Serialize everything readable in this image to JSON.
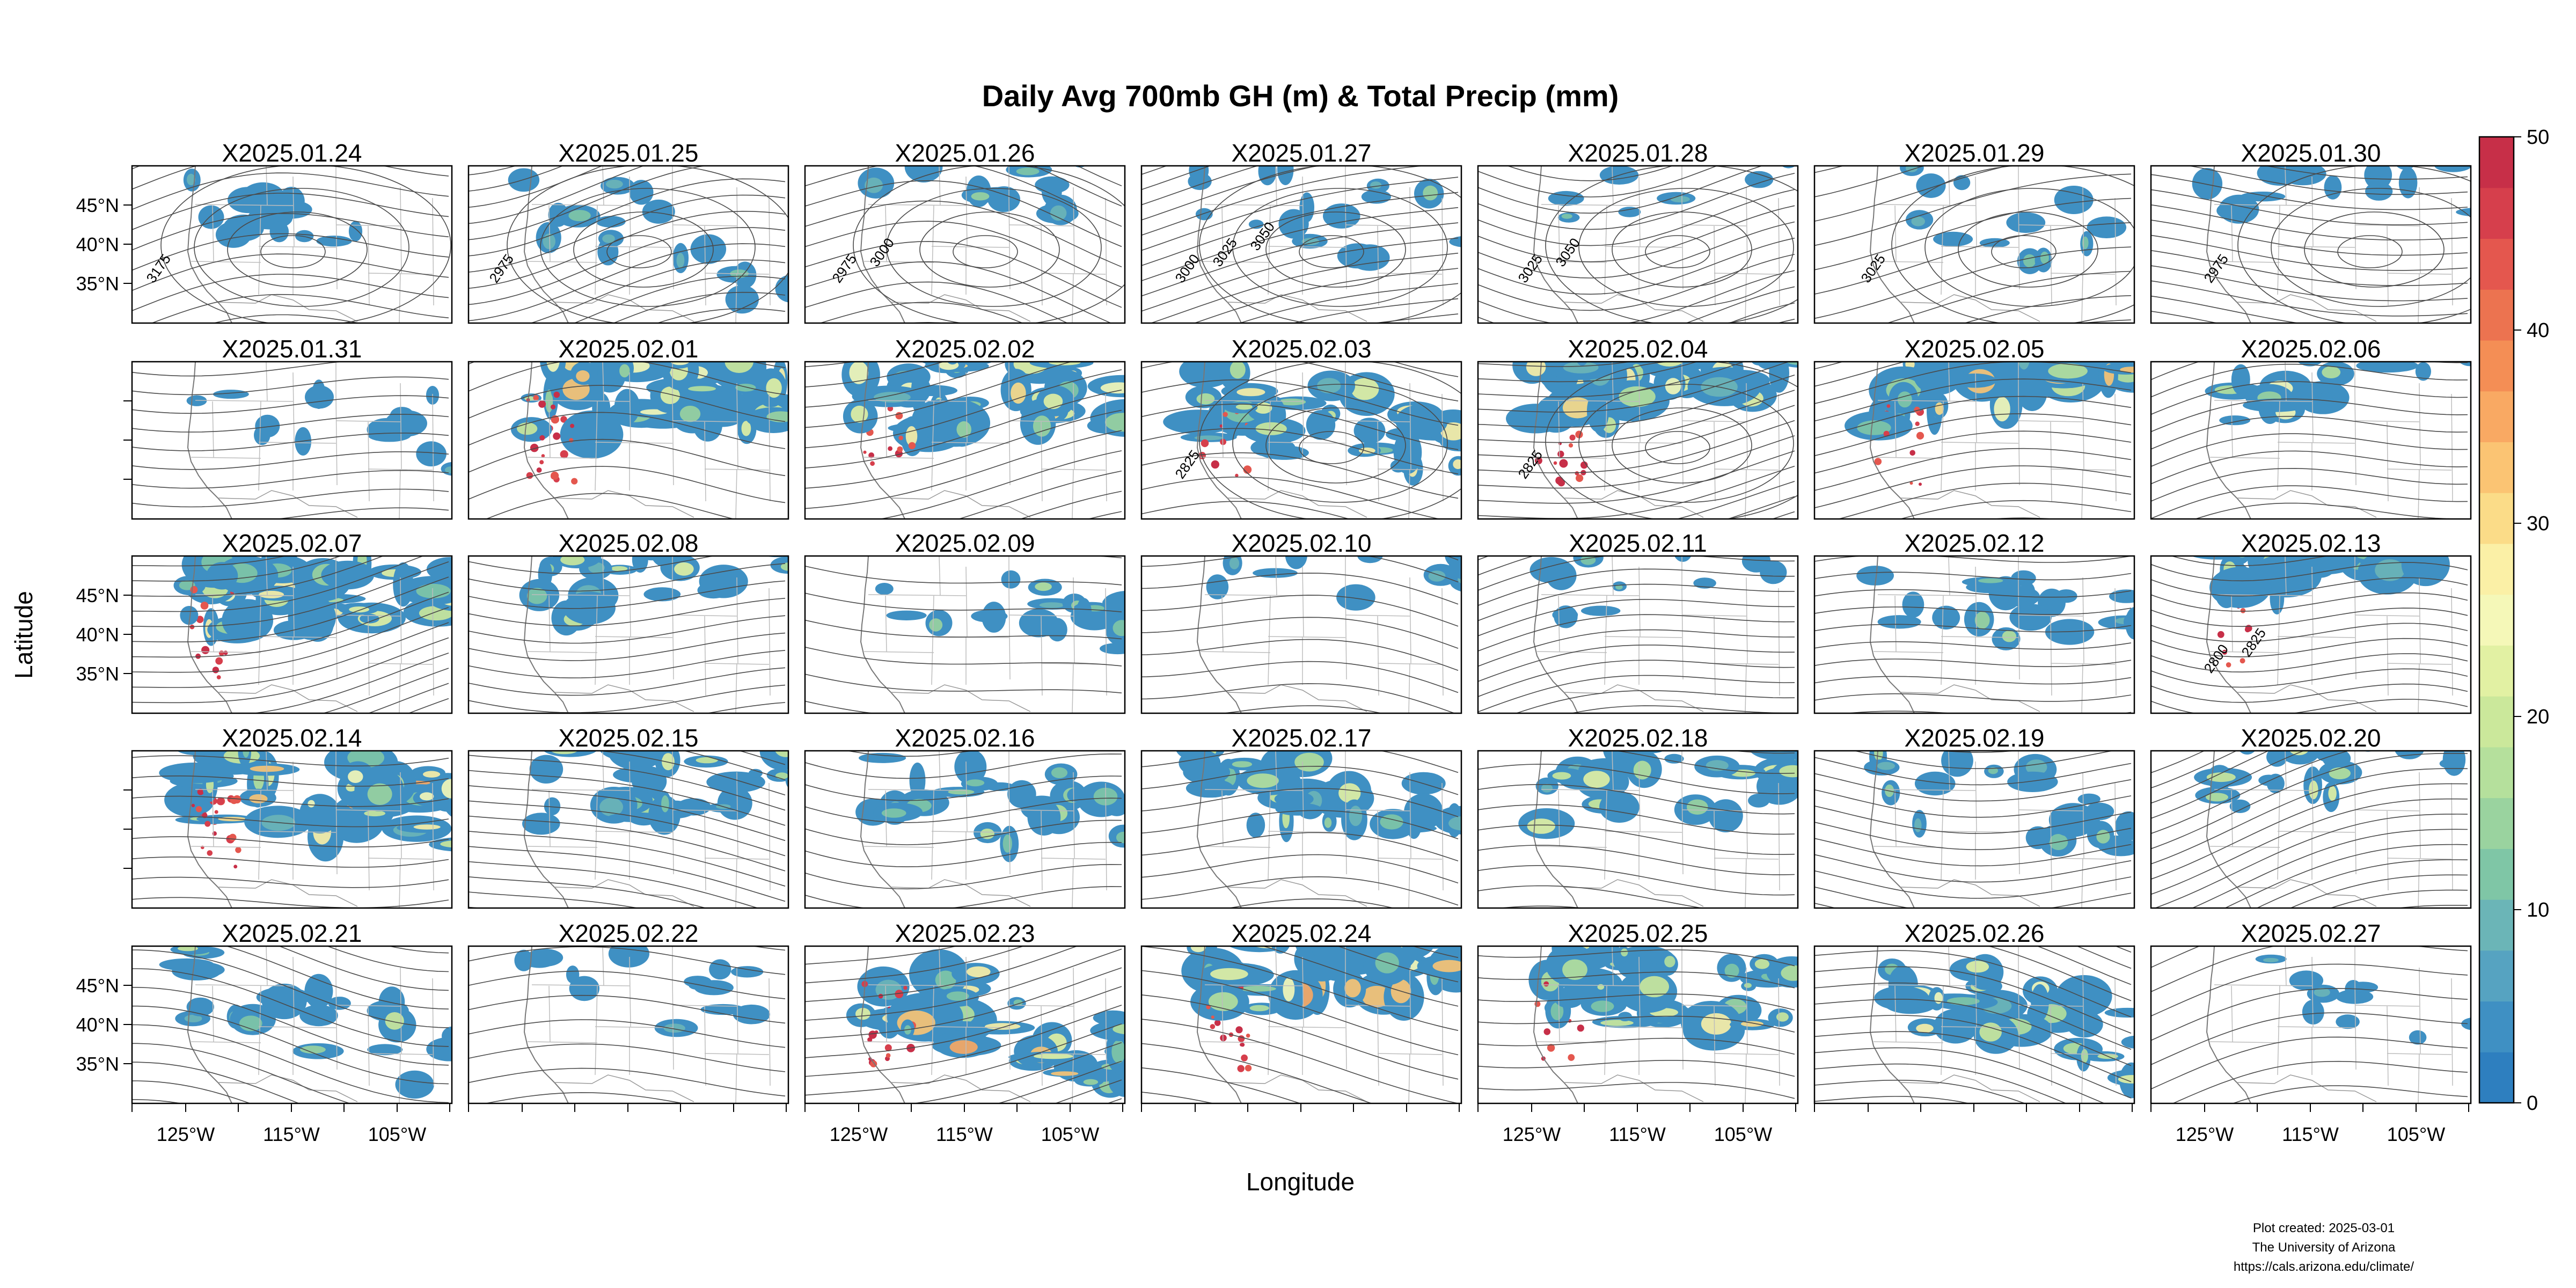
{
  "chart_data": {
    "type": "heatmap",
    "title": "Daily Avg 700mb GH (m) & Total Precip (mm)",
    "xlabel": "Longitude",
    "ylabel": "Latitude",
    "colorbar": {
      "min": 0,
      "max": 50,
      "ticks": [
        "0",
        "10",
        "20",
        "30",
        "40",
        "50"
      ],
      "colors": [
        "#2e7fbf",
        "#3f90c3",
        "#56a3c1",
        "#6bb5b7",
        "#7fc6a6",
        "#9ad39f",
        "#b5e09c",
        "#cbe89b",
        "#e2f1a3",
        "#f5f8b8",
        "#fbf0a6",
        "#fbdc88",
        "#fbc473",
        "#f9a963",
        "#f48e55",
        "#ec7350",
        "#e4574e",
        "#d63f4c",
        "#c72f48"
      ]
    },
    "lon_ticks": [
      "125°W",
      "115°W",
      "105°W"
    ],
    "lat_ticks": [
      "45°N",
      "40°N",
      "35°N"
    ],
    "panels": [
      {
        "date": "X2025.01.24",
        "intensity": 0.2,
        "clabels": [
          "3175"
        ]
      },
      {
        "date": "X2025.01.25",
        "intensity": 0.25,
        "clabels": [
          "2975"
        ]
      },
      {
        "date": "X2025.01.26",
        "intensity": 0.3,
        "clabels": [
          "2975",
          "3000"
        ]
      },
      {
        "date": "X2025.01.27",
        "intensity": 0.25,
        "clabels": [
          "3000",
          "3025",
          "3050"
        ]
      },
      {
        "date": "X2025.01.28",
        "intensity": 0.2,
        "clabels": [
          "3025",
          "3050"
        ]
      },
      {
        "date": "X2025.01.29",
        "intensity": 0.15,
        "clabels": [
          "3025"
        ]
      },
      {
        "date": "X2025.01.30",
        "intensity": 0.25,
        "clabels": [
          "2975"
        ]
      },
      {
        "date": "X2025.01.31",
        "intensity": 0.2,
        "clabels": []
      },
      {
        "date": "X2025.02.01",
        "intensity": 0.8,
        "clabels": []
      },
      {
        "date": "X2025.02.02",
        "intensity": 0.75,
        "clabels": []
      },
      {
        "date": "X2025.02.03",
        "intensity": 0.7,
        "clabels": [
          "2825"
        ]
      },
      {
        "date": "X2025.02.04",
        "intensity": 0.75,
        "clabels": [
          "2825"
        ]
      },
      {
        "date": "X2025.02.05",
        "intensity": 0.85,
        "clabels": []
      },
      {
        "date": "X2025.02.06",
        "intensity": 0.55,
        "clabels": []
      },
      {
        "date": "X2025.02.07",
        "intensity": 0.7,
        "clabels": []
      },
      {
        "date": "X2025.02.08",
        "intensity": 0.45,
        "clabels": []
      },
      {
        "date": "X2025.02.09",
        "intensity": 0.35,
        "clabels": []
      },
      {
        "date": "X2025.02.10",
        "intensity": 0.2,
        "clabels": []
      },
      {
        "date": "X2025.02.11",
        "intensity": 0.2,
        "clabels": []
      },
      {
        "date": "X2025.02.12",
        "intensity": 0.35,
        "clabels": []
      },
      {
        "date": "X2025.02.13",
        "intensity": 0.7,
        "clabels": [
          "2800",
          "2825"
        ]
      },
      {
        "date": "X2025.02.14",
        "intensity": 0.85,
        "clabels": []
      },
      {
        "date": "X2025.02.15",
        "intensity": 0.55,
        "clabels": []
      },
      {
        "date": "X2025.02.16",
        "intensity": 0.4,
        "clabels": []
      },
      {
        "date": "X2025.02.17",
        "intensity": 0.55,
        "clabels": []
      },
      {
        "date": "X2025.02.18",
        "intensity": 0.5,
        "clabels": []
      },
      {
        "date": "X2025.02.19",
        "intensity": 0.35,
        "clabels": []
      },
      {
        "date": "X2025.02.20",
        "intensity": 0.5,
        "clabels": []
      },
      {
        "date": "X2025.02.21",
        "intensity": 0.4,
        "clabels": []
      },
      {
        "date": "X2025.02.22",
        "intensity": 0.2,
        "clabels": []
      },
      {
        "date": "X2025.02.23",
        "intensity": 0.85,
        "clabels": []
      },
      {
        "date": "X2025.02.24",
        "intensity": 0.9,
        "clabels": []
      },
      {
        "date": "X2025.02.25",
        "intensity": 0.7,
        "clabels": []
      },
      {
        "date": "X2025.02.26",
        "intensity": 0.6,
        "clabels": []
      },
      {
        "date": "X2025.02.27",
        "intensity": 0.1,
        "clabels": []
      }
    ],
    "footer": [
      "Plot created: 2025-03-01",
      "The University of Arizona",
      "https://cals.arizona.edu/climate/"
    ]
  }
}
